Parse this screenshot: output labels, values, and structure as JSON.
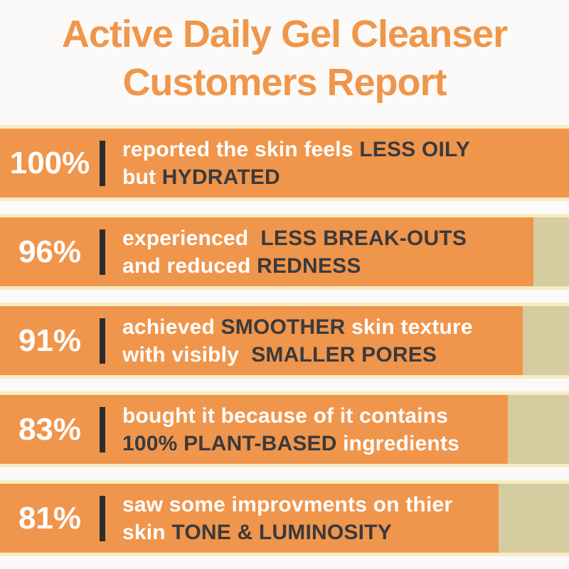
{
  "title": {
    "line1": "Active Daily Gel Cleanser",
    "line2": "Customers Report"
  },
  "colors": {
    "title_orange": "#F0964B",
    "bar_orange": "#F0954C",
    "track_tan": "#D5CC9F",
    "bar_edge": "#F8ECC2",
    "text_white": "#FFFFFF",
    "text_dark": "#3A3A3C",
    "divider_dark": "#2C2C2E",
    "background": "#FBFAF8"
  },
  "rows": [
    {
      "pct_label": "100%",
      "value": 100,
      "display_fill_pct": 100,
      "lines": [
        [
          {
            "text": "reported the skin feels ",
            "emphasis": false
          },
          {
            "text": "LESS OILY",
            "emphasis": true
          }
        ],
        [
          {
            "text": "but ",
            "emphasis": false
          },
          {
            "text": "HYDRATED",
            "emphasis": true
          }
        ]
      ]
    },
    {
      "pct_label": "96%",
      "value": 96,
      "display_fill_pct": 93.8,
      "lines": [
        [
          {
            "text": "experienced  ",
            "emphasis": false
          },
          {
            "text": "LESS BREAK-OUTS",
            "emphasis": true
          }
        ],
        [
          {
            "text": "and reduced ",
            "emphasis": false
          },
          {
            "text": "REDNESS",
            "emphasis": true
          }
        ]
      ]
    },
    {
      "pct_label": "91%",
      "value": 91,
      "display_fill_pct": 91.9,
      "lines": [
        [
          {
            "text": "achieved ",
            "emphasis": false
          },
          {
            "text": "SMOOTHER",
            "emphasis": true
          },
          {
            "text": " skin texture",
            "emphasis": false
          }
        ],
        [
          {
            "text": "with visibly  ",
            "emphasis": false
          },
          {
            "text": "SMALLER PORES",
            "emphasis": true
          }
        ]
      ]
    },
    {
      "pct_label": "83%",
      "value": 83,
      "display_fill_pct": 89.3,
      "lines": [
        [
          {
            "text": "bought it because of it contains",
            "emphasis": false
          }
        ],
        [
          {
            "text": "100% PLANT-BASED",
            "emphasis": true
          },
          {
            "text": " ingredients",
            "emphasis": false
          }
        ]
      ]
    },
    {
      "pct_label": "81%",
      "value": 81,
      "display_fill_pct": 87.6,
      "lines": [
        [
          {
            "text": "saw some improvments on thier",
            "emphasis": false
          }
        ],
        [
          {
            "text": "skin ",
            "emphasis": false
          },
          {
            "text": "TONE & LUMINOSITY",
            "emphasis": true
          }
        ]
      ]
    }
  ],
  "chart_data": {
    "type": "bar",
    "orientation": "horizontal",
    "title": "Active Daily Gel Cleanser Customers Report",
    "categories": [
      "reported the skin feels LESS OILY but HYDRATED",
      "experienced LESS BREAK-OUTS and reduced REDNESS",
      "achieved SMOOTHER skin texture with visibly SMALLER PORES",
      "bought it because of it contains 100% PLANT-BASED ingredients",
      "saw some improvments on thier skin TONE & LUMINOSITY"
    ],
    "values": [
      100,
      96,
      91,
      83,
      81
    ],
    "unit": "%",
    "xlabel": "",
    "ylabel": "",
    "xlim": [
      0,
      100
    ],
    "grid": false,
    "legend": "none",
    "bar_display_fill_pct": [
      100,
      93.8,
      91.9,
      89.3,
      87.6
    ]
  }
}
